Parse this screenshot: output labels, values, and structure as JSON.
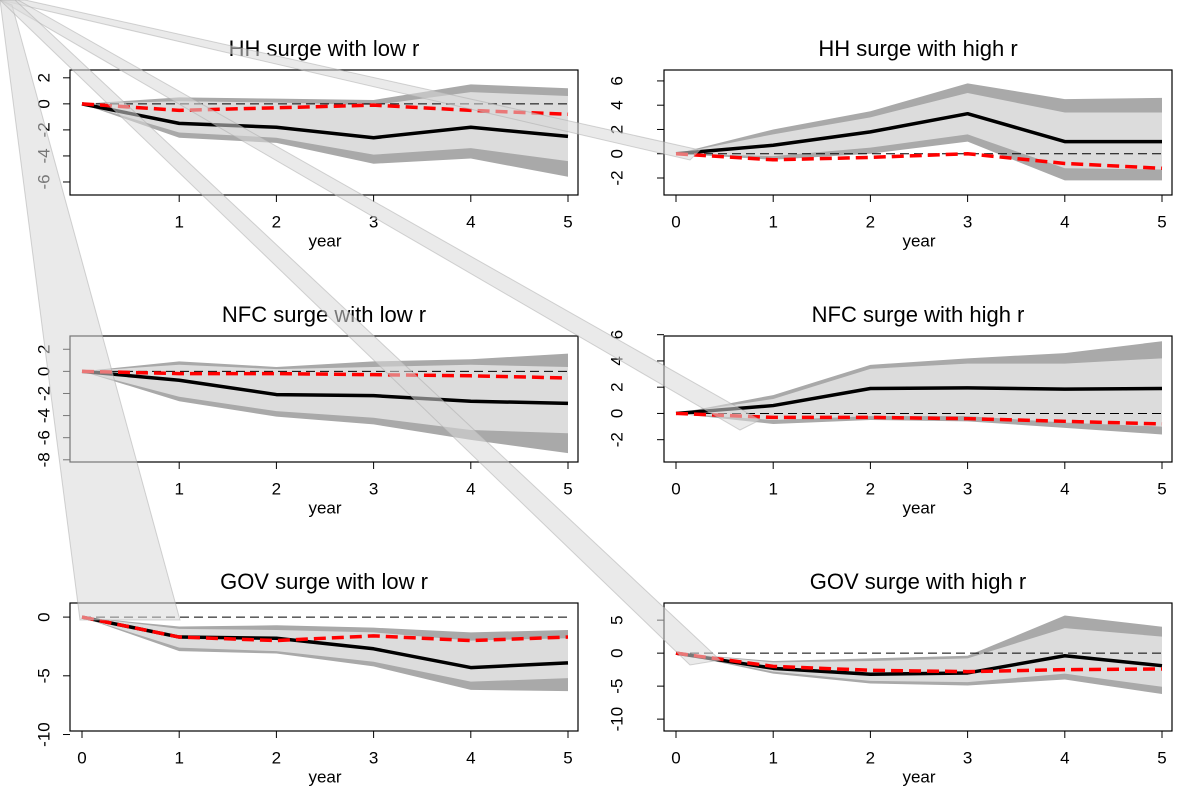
{
  "chart_data": [
    {
      "type": "line",
      "title": "HH surge with low r",
      "xlabel": "year",
      "x": [
        0,
        1,
        2,
        3,
        4,
        5
      ],
      "xticks": [
        1,
        2,
        3,
        4,
        5
      ],
      "xlim": [
        0,
        5
      ],
      "ylim": [
        -7,
        2.6
      ],
      "yticks": [
        -6,
        -4,
        -2,
        0,
        2
      ],
      "hline": 0,
      "bands": [
        {
          "color": "#a9a9a9",
          "lower": [
            0,
            -2.6,
            -3,
            -4.6,
            -4.2,
            -5.6
          ],
          "upper": [
            0,
            0.5,
            0.4,
            0.3,
            1.5,
            1.2
          ]
        },
        {
          "color": "#dcdcdc",
          "lower": [
            0,
            -2.2,
            -2.6,
            -3.9,
            -3.4,
            -4.4
          ],
          "upper": [
            0,
            0.2,
            0.1,
            -0.1,
            0.9,
            0.6
          ]
        }
      ],
      "series": [
        {
          "color": "#000000",
          "dash": false,
          "values": [
            0,
            -1.5,
            -1.8,
            -2.6,
            -1.8,
            -2.5
          ]
        },
        {
          "color": "#ff0000",
          "dash": true,
          "values": [
            0,
            -0.5,
            -0.3,
            -0.1,
            -0.5,
            -0.8
          ]
        }
      ]
    },
    {
      "type": "line",
      "title": "HH surge with high r",
      "xlabel": "year",
      "x": [
        0,
        1,
        2,
        3,
        4,
        5
      ],
      "xticks": [
        0,
        1,
        2,
        3,
        4,
        5
      ],
      "xlim": [
        0,
        5
      ],
      "ylim": [
        -3.4,
        6.9
      ],
      "yticks": [
        -2,
        0,
        2,
        4,
        6
      ],
      "hline": 0,
      "bands": [
        {
          "color": "#a9a9a9",
          "lower": [
            0,
            -0.5,
            0,
            1,
            -2.2,
            -2.2
          ],
          "upper": [
            0,
            2,
            3.5,
            5.8,
            4.5,
            4.6
          ]
        },
        {
          "color": "#dcdcdc",
          "lower": [
            0,
            -0.2,
            0.5,
            1.6,
            -1.2,
            -1.3
          ],
          "upper": [
            0,
            1.6,
            3,
            5,
            3.4,
            3.4
          ]
        }
      ],
      "series": [
        {
          "color": "#000000",
          "dash": false,
          "values": [
            0,
            0.7,
            1.8,
            3.3,
            1.0,
            1.0
          ]
        },
        {
          "color": "#ff0000",
          "dash": true,
          "values": [
            0,
            -0.5,
            -0.3,
            0,
            -0.8,
            -1.2
          ]
        }
      ]
    },
    {
      "type": "line",
      "title": "NFC surge with low r",
      "xlabel": "year",
      "x": [
        0,
        1,
        2,
        3,
        4,
        5
      ],
      "xticks": [
        1,
        2,
        3,
        4,
        5
      ],
      "xlim": [
        0,
        5
      ],
      "ylim": [
        -8.2,
        3.2
      ],
      "yticks": [
        -8,
        -6,
        -4,
        -2,
        0,
        2
      ],
      "hline": 0,
      "bands": [
        {
          "color": "#a9a9a9",
          "lower": [
            0,
            -2.7,
            -4.1,
            -4.8,
            -6.2,
            -7.4
          ],
          "upper": [
            0,
            0.9,
            0.4,
            0.9,
            1.1,
            1.6
          ]
        },
        {
          "color": "#dcdcdc",
          "lower": [
            0,
            -2.3,
            -3.6,
            -4.2,
            -5.3,
            -5.6
          ],
          "upper": [
            0,
            0.6,
            0.2,
            0.4,
            0.6,
            0.4
          ]
        }
      ],
      "series": [
        {
          "color": "#000000",
          "dash": false,
          "values": [
            0,
            -0.8,
            -2.1,
            -2.2,
            -2.7,
            -2.9
          ]
        },
        {
          "color": "#ff0000",
          "dash": true,
          "values": [
            0,
            -0.2,
            -0.2,
            -0.3,
            -0.4,
            -0.6
          ]
        }
      ]
    },
    {
      "type": "line",
      "title": "NFC surge with high r",
      "xlabel": "year",
      "x": [
        0,
        1,
        2,
        3,
        4,
        5
      ],
      "xticks": [
        0,
        1,
        2,
        3,
        4,
        5
      ],
      "xlim": [
        0,
        5
      ],
      "ylim": [
        -3.7,
        5.9
      ],
      "yticks": [
        -2,
        0,
        2,
        4,
        6
      ],
      "hline": 0,
      "bands": [
        {
          "color": "#a9a9a9",
          "lower": [
            0,
            -0.8,
            -0.5,
            -0.6,
            -1.1,
            -1.6
          ],
          "upper": [
            0,
            1.4,
            3.7,
            4.2,
            4.6,
            5.5
          ]
        },
        {
          "color": "#dcdcdc",
          "lower": [
            0,
            -0.5,
            -0.2,
            -0.2,
            -0.7,
            -1.0
          ],
          "upper": [
            0,
            1.1,
            3.4,
            3.8,
            3.8,
            4.2
          ]
        }
      ],
      "series": [
        {
          "color": "#000000",
          "dash": false,
          "values": [
            0,
            0.6,
            1.9,
            1.95,
            1.85,
            1.9
          ]
        },
        {
          "color": "#ff0000",
          "dash": true,
          "values": [
            0,
            -0.3,
            -0.3,
            -0.4,
            -0.6,
            -0.8
          ]
        }
      ]
    },
    {
      "type": "line",
      "title": "GOV surge with low r",
      "xlabel": "year",
      "x": [
        0,
        1,
        2,
        3,
        4,
        5
      ],
      "xticks": [
        0,
        1,
        2,
        3,
        4,
        5
      ],
      "xlim": [
        0,
        5
      ],
      "ylim": [
        -9.7,
        1.2
      ],
      "yticks": [
        -10,
        -5,
        0
      ],
      "hline": 0,
      "bands": [
        {
          "color": "#a9a9a9",
          "lower": [
            0,
            -2.9,
            -3.1,
            -4.2,
            -6.2,
            -6.3
          ],
          "upper": [
            0,
            -0.8,
            -0.7,
            -0.9,
            -1.3,
            -1.1
          ]
        },
        {
          "color": "#dcdcdc",
          "lower": [
            0,
            -2.6,
            -2.9,
            -3.8,
            -5.5,
            -5.2
          ],
          "upper": [
            0,
            -1.0,
            -1.1,
            -1.3,
            -2.0,
            -1.8
          ]
        }
      ],
      "series": [
        {
          "color": "#000000",
          "dash": false,
          "values": [
            0,
            -1.7,
            -1.8,
            -2.7,
            -4.3,
            -3.9
          ]
        },
        {
          "color": "#ff0000",
          "dash": true,
          "values": [
            0,
            -1.7,
            -2.0,
            -1.6,
            -2.0,
            -1.7
          ]
        }
      ]
    },
    {
      "type": "line",
      "title": "GOV surge with high r",
      "xlabel": "year",
      "x": [
        0,
        1,
        2,
        3,
        4,
        5
      ],
      "xticks": [
        0,
        1,
        2,
        3,
        4,
        5
      ],
      "xlim": [
        0,
        5
      ],
      "ylim": [
        -11.8,
        7.6
      ],
      "yticks": [
        -10,
        -5,
        0,
        5
      ],
      "hline": 0,
      "bands": [
        {
          "color": "#a9a9a9",
          "lower": [
            0,
            -3.1,
            -4.6,
            -4.9,
            -4.0,
            -6.2
          ],
          "upper": [
            0,
            -1.2,
            -0.8,
            -0.4,
            5.7,
            4.0
          ]
        },
        {
          "color": "#dcdcdc",
          "lower": [
            0,
            -2.8,
            -4.2,
            -4.4,
            -3.1,
            -5.1
          ],
          "upper": [
            0,
            -1.4,
            -1.2,
            -0.8,
            3.8,
            2.5
          ]
        }
      ],
      "series": [
        {
          "color": "#000000",
          "dash": false,
          "values": [
            0,
            -2.3,
            -3.2,
            -3.0,
            -0.4,
            -1.9
          ]
        },
        {
          "color": "#ff0000",
          "dash": true,
          "values": [
            0,
            -2.0,
            -2.6,
            -2.8,
            -2.5,
            -2.4
          ]
        }
      ]
    }
  ]
}
